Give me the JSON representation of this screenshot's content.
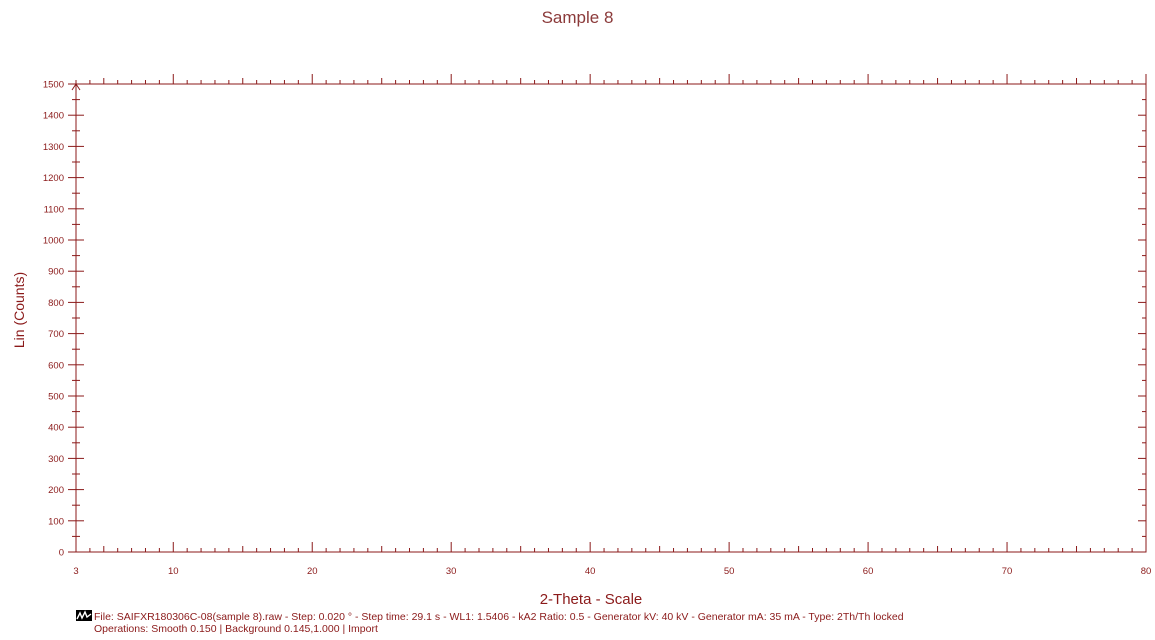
{
  "chart_data": {
    "type": "line",
    "title": "Sample 8",
    "xlabel": "2-Theta - Scale",
    "ylabel": "Lin (Counts)",
    "xlim": [
      3,
      80
    ],
    "ylim": [
      0,
      1500
    ],
    "x_ticks": [
      3,
      10,
      20,
      30,
      40,
      50,
      60,
      70,
      80
    ],
    "y_ticks": [
      0,
      100,
      200,
      300,
      400,
      500,
      600,
      700,
      800,
      900,
      1000,
      1100,
      1200,
      1300,
      1400,
      1500
    ],
    "series": [],
    "grid": false,
    "colors": {
      "axis": "#8b1a1a",
      "title": "#8b3a3a"
    }
  },
  "footer": {
    "file_line": "File: SAIFXR180306C-08(sample 8).raw - Step: 0.020 ° - Step time: 29.1 s - WL1: 1.5406 - kA2 Ratio: 0.5 - Generator kV: 40 kV - Generator mA: 35 mA - Type: 2Th/Th locked",
    "operations_line": "Operations: Smooth 0.150 | Background 0.145,1.000 | Import",
    "icon": "scan-icon"
  }
}
